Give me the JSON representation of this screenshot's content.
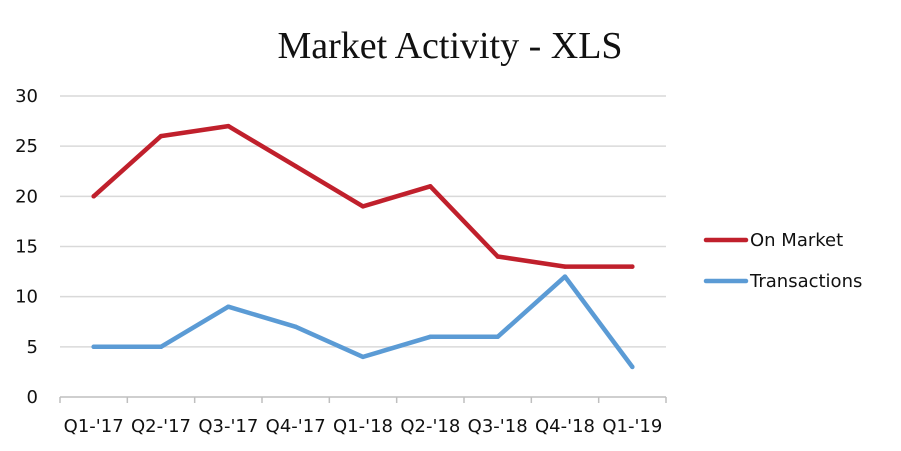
{
  "chart_data": {
    "type": "line",
    "title": "Market Activity - XLS",
    "categories": [
      "Q1-'17",
      "Q2-'17",
      "Q3-'17",
      "Q4-'17",
      "Q1-'18",
      "Q2-'18",
      "Q3-'18",
      "Q4-'18",
      "Q1-'19"
    ],
    "series": [
      {
        "name": "On Market",
        "color": "#c0202c",
        "values": [
          20,
          26,
          27,
          23,
          19,
          21,
          14,
          13,
          13
        ]
      },
      {
        "name": "Transactions",
        "color": "#5b9bd5",
        "values": [
          5,
          5,
          9,
          7,
          4,
          6,
          6,
          12,
          3
        ]
      }
    ],
    "y_ticks": [
      0,
      5,
      10,
      15,
      20,
      25,
      30
    ],
    "ylim": [
      0,
      30
    ],
    "xlabel": "",
    "ylabel": "",
    "grid": true,
    "legend": "right"
  }
}
